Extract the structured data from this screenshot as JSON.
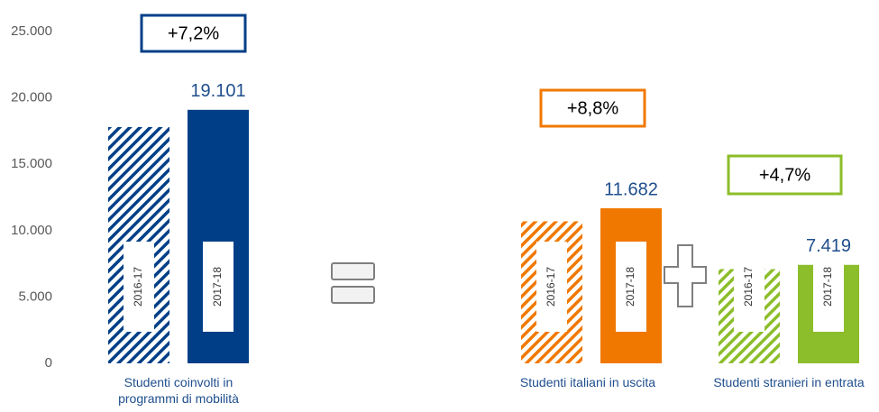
{
  "chart_data": {
    "type": "bar",
    "categories": [
      "Studenti coinvolti in programmi di mobilità",
      "Studenti italiani in uscita",
      "Studenti stranieri in entrata"
    ],
    "category_colors": [
      "#003f87",
      "#f07800",
      "#8cbd2a"
    ],
    "series": [
      {
        "name": "2016-17",
        "pattern": "hatched",
        "values": [
          17800,
          10700,
          7100
        ]
      },
      {
        "name": "2017-18",
        "pattern": "solid",
        "values": [
          19101,
          11682,
          7419
        ],
        "value_labels": [
          "19.101",
          "11.682",
          "7.419"
        ]
      }
    ],
    "annotations": [
      "+7,2%",
      "+8,8%",
      "+4,7%"
    ],
    "ylim": [
      0,
      25000
    ],
    "yticks": [
      0,
      {
        "value": 5000,
        "label": "5.000"
      },
      {
        "value": 10000,
        "label": "10.000"
      },
      {
        "value": 15000,
        "label": "15.000"
      },
      {
        "value": 20000,
        "label": "20.000"
      },
      {
        "value": 25000,
        "label": "25.000"
      }
    ],
    "grid": false
  }
}
